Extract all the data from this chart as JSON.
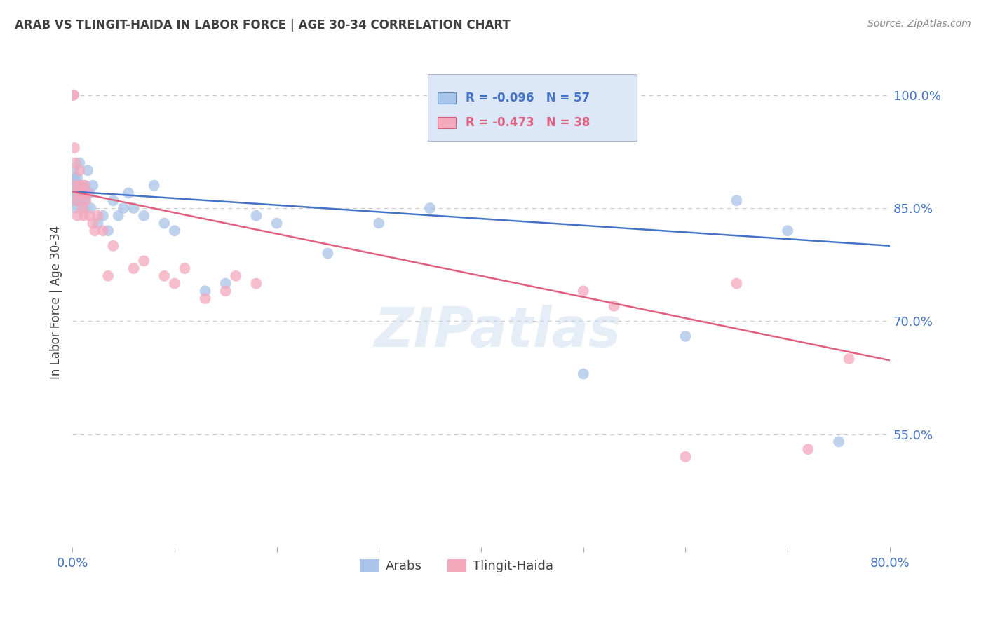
{
  "title": "ARAB VS TLINGIT-HAIDA IN LABOR FORCE | AGE 30-34 CORRELATION CHART",
  "source": "Source: ZipAtlas.com",
  "ylabel": "In Labor Force | Age 30-34",
  "xlim": [
    0.0,
    0.8
  ],
  "ylim": [
    0.4,
    1.05
  ],
  "yticks": [
    0.55,
    0.7,
    0.85,
    1.0
  ],
  "ytick_labels": [
    "55.0%",
    "70.0%",
    "85.0%",
    "100.0%"
  ],
  "xticks": [
    0.0,
    0.1,
    0.2,
    0.3,
    0.4,
    0.5,
    0.6,
    0.7,
    0.8
  ],
  "xtick_labels": [
    "0.0%",
    "",
    "",
    "",
    "",
    "",
    "",
    "",
    "80.0%"
  ],
  "arab_color": "#a8c4e8",
  "tlingit_color": "#f4a8bc",
  "arab_line_color": "#4472c4",
  "tlingit_line_color": "#e06080",
  "legend_box_color": "#dce8f8",
  "arab_R": -0.096,
  "arab_N": 57,
  "tlingit_R": -0.473,
  "tlingit_N": 38,
  "watermark": "ZIPatlas",
  "background_color": "#ffffff",
  "axis_label_color": "#4472c4",
  "grid_color": "#c8c8c8",
  "title_color": "#404040",
  "arab_trend_x0": 0.0,
  "arab_trend_y0": 0.872,
  "arab_trend_x1": 0.8,
  "arab_trend_y1": 0.8,
  "tlingit_trend_x0": 0.0,
  "tlingit_trend_y0": 0.872,
  "tlingit_trend_x1": 0.8,
  "tlingit_trend_y1": 0.648,
  "arab_x": [
    0.001,
    0.001,
    0.001,
    0.001,
    0.001,
    0.002,
    0.002,
    0.002,
    0.002,
    0.002,
    0.003,
    0.003,
    0.003,
    0.004,
    0.004,
    0.004,
    0.005,
    0.005,
    0.006,
    0.006,
    0.007,
    0.008,
    0.008,
    0.009,
    0.01,
    0.01,
    0.011,
    0.012,
    0.013,
    0.015,
    0.017,
    0.018,
    0.02,
    0.025,
    0.03,
    0.035,
    0.04,
    0.045,
    0.05,
    0.055,
    0.06,
    0.07,
    0.08,
    0.09,
    0.1,
    0.13,
    0.15,
    0.18,
    0.2,
    0.25,
    0.3,
    0.35,
    0.5,
    0.6,
    0.65,
    0.7,
    0.75
  ],
  "arab_y": [
    0.87,
    0.88,
    0.89,
    0.9,
    0.86,
    0.87,
    0.88,
    0.87,
    0.86,
    0.89,
    0.87,
    0.86,
    0.85,
    0.88,
    0.87,
    0.86,
    0.89,
    0.87,
    0.88,
    0.86,
    0.91,
    0.87,
    0.86,
    0.88,
    0.87,
    0.86,
    0.85,
    0.88,
    0.86,
    0.9,
    0.87,
    0.85,
    0.88,
    0.83,
    0.84,
    0.82,
    0.86,
    0.84,
    0.85,
    0.87,
    0.85,
    0.84,
    0.88,
    0.83,
    0.82,
    0.74,
    0.75,
    0.84,
    0.83,
    0.79,
    0.83,
    0.85,
    0.63,
    0.68,
    0.86,
    0.82,
    0.54
  ],
  "tlingit_x": [
    0.001,
    0.001,
    0.002,
    0.003,
    0.003,
    0.004,
    0.005,
    0.006,
    0.007,
    0.008,
    0.009,
    0.01,
    0.011,
    0.012,
    0.013,
    0.015,
    0.017,
    0.02,
    0.022,
    0.025,
    0.03,
    0.035,
    0.04,
    0.06,
    0.07,
    0.09,
    0.1,
    0.11,
    0.13,
    0.15,
    0.16,
    0.18,
    0.5,
    0.53,
    0.6,
    0.65,
    0.72,
    0.76
  ],
  "tlingit_y": [
    1.0,
    1.0,
    0.93,
    0.91,
    0.88,
    0.86,
    0.84,
    0.87,
    0.9,
    0.88,
    0.87,
    0.85,
    0.84,
    0.88,
    0.86,
    0.87,
    0.84,
    0.83,
    0.82,
    0.84,
    0.82,
    0.76,
    0.8,
    0.77,
    0.78,
    0.76,
    0.75,
    0.77,
    0.73,
    0.74,
    0.76,
    0.75,
    0.74,
    0.72,
    0.52,
    0.75,
    0.53,
    0.65
  ]
}
